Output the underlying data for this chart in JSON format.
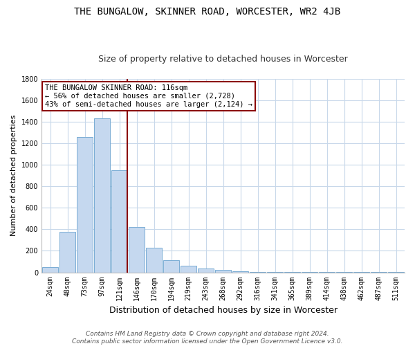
{
  "title": "THE BUNGALOW, SKINNER ROAD, WORCESTER, WR2 4JB",
  "subtitle": "Size of property relative to detached houses in Worcester",
  "xlabel": "Distribution of detached houses by size in Worcester",
  "ylabel": "Number of detached properties",
  "categories": [
    "24sqm",
    "48sqm",
    "73sqm",
    "97sqm",
    "121sqm",
    "146sqm",
    "170sqm",
    "194sqm",
    "219sqm",
    "243sqm",
    "268sqm",
    "292sqm",
    "316sqm",
    "341sqm",
    "365sqm",
    "389sqm",
    "414sqm",
    "438sqm",
    "462sqm",
    "487sqm",
    "511sqm"
  ],
  "values": [
    50,
    380,
    1260,
    1430,
    950,
    420,
    230,
    110,
    60,
    35,
    20,
    10,
    5,
    3,
    2,
    2,
    1,
    1,
    1,
    1,
    1
  ],
  "bar_color": "#c5d8ef",
  "bar_edge_color": "#7aadd4",
  "highlight_index": 4,
  "highlight_color": "#8b0000",
  "annotation_text": "THE BUNGALOW SKINNER ROAD: 116sqm\n← 56% of detached houses are smaller (2,728)\n43% of semi-detached houses are larger (2,124) →",
  "annotation_box_color": "#ffffff",
  "annotation_box_edge_color": "#8b0000",
  "ylim": [
    0,
    1800
  ],
  "yticks": [
    0,
    200,
    400,
    600,
    800,
    1000,
    1200,
    1400,
    1600,
    1800
  ],
  "footer": "Contains HM Land Registry data © Crown copyright and database right 2024.\nContains public sector information licensed under the Open Government Licence v3.0.",
  "bg_color": "#ffffff",
  "grid_color": "#c8d8ea",
  "title_fontsize": 10,
  "subtitle_fontsize": 9,
  "ylabel_fontsize": 8,
  "xlabel_fontsize": 9,
  "tick_fontsize": 7,
  "annot_fontsize": 7.5,
  "footer_fontsize": 6.5
}
